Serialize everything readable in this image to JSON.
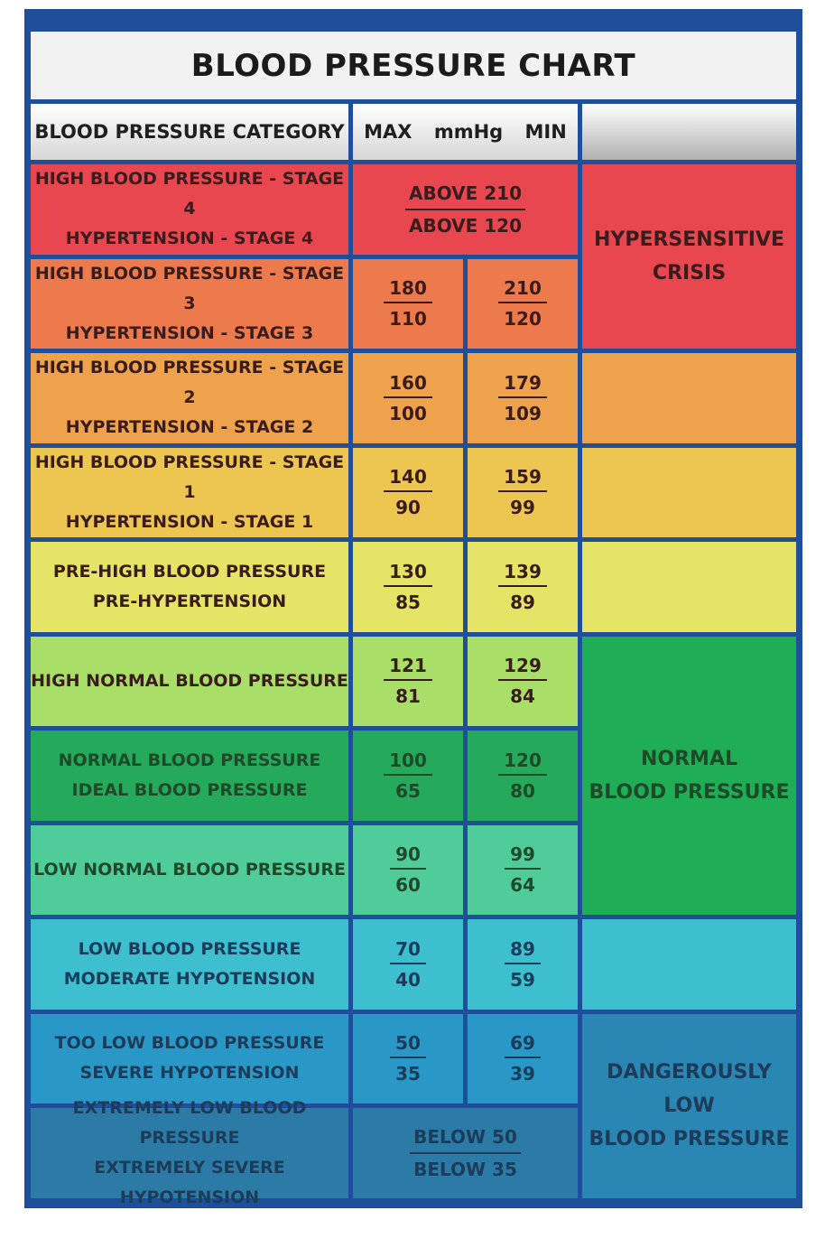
{
  "title": "BLOOD PRESSURE CHART",
  "header": {
    "category": "BLOOD PRESSURE CATEGORY",
    "max": "MAX",
    "unit": "mmHg",
    "min": "MIN"
  },
  "chart_data": {
    "type": "table",
    "columns": [
      "BLOOD PRESSURE CATEGORY",
      "MAX mmHg",
      "MIN mmHg"
    ],
    "rows": [
      {
        "line1": "HIGH BLOOD PRESSURE - STAGE 4",
        "line2": "HYPERTENSION - STAGE 4",
        "combined": [
          "ABOVE 210",
          "ABOVE 120"
        ],
        "color": "#e8474f"
      },
      {
        "line1": "HIGH BLOOD PRESSURE - STAGE 3",
        "line2": "HYPERTENSION - STAGE 3",
        "max": [
          "180",
          "110"
        ],
        "min": [
          "210",
          "120"
        ],
        "color": "#ec7a4d"
      },
      {
        "line1": "HIGH BLOOD PRESSURE - STAGE 2",
        "line2": "HYPERTENSION - STAGE 2",
        "max": [
          "160",
          "100"
        ],
        "min": [
          "179",
          "109"
        ],
        "color": "#eea24c"
      },
      {
        "line1": "HIGH BLOOD PRESSURE - STAGE 1",
        "line2": "HYPERTENSION - STAGE 1",
        "max": [
          "140",
          "90"
        ],
        "min": [
          "159",
          "99"
        ],
        "color": "#edc651"
      },
      {
        "line1": "PRE-HIGH BLOOD PRESSURE",
        "line2": "PRE-HYPERTENSION",
        "max": [
          "130",
          "85"
        ],
        "min": [
          "139",
          "89"
        ],
        "color": "#e5e466"
      },
      {
        "line1": "HIGH NORMAL BLOOD PRESSURE",
        "line2": "",
        "max": [
          "121",
          "81"
        ],
        "min": [
          "129",
          "84"
        ],
        "color": "#a9df68"
      },
      {
        "line1": "NORMAL BLOOD PRESSURE",
        "line2": "IDEAL BLOOD PRESSURE",
        "max": [
          "100",
          "65"
        ],
        "min": [
          "120",
          "80"
        ],
        "color": "#25a95a"
      },
      {
        "line1": "LOW NORMAL BLOOD PRESSURE",
        "line2": "",
        "max": [
          "90",
          "60"
        ],
        "min": [
          "99",
          "64"
        ],
        "color": "#50cc9b"
      },
      {
        "line1": "LOW BLOOD PRESSURE",
        "line2": "MODERATE HYPOTENSION",
        "max": [
          "70",
          "40"
        ],
        "min": [
          "89",
          "59"
        ],
        "color": "#3dbfcf"
      },
      {
        "line1": "TOO LOW BLOOD PRESSURE",
        "line2": "SEVERE HYPOTENSION",
        "max": [
          "50",
          "35"
        ],
        "min": [
          "69",
          "39"
        ],
        "color": "#2a98c6"
      },
      {
        "line1": "EXTREMELY LOW BLOOD PRESSURE",
        "line2": "EXTREMELY SEVERE HYPOTENSION",
        "combined": [
          "BELOW 50",
          "BELOW 35"
        ],
        "color": "#2b7ba6"
      }
    ],
    "groups": [
      {
        "line1": "HYPERSENSITIVE",
        "line2": "CRISIS",
        "row_start": 0,
        "row_end": 1,
        "color": "#e8474f"
      },
      {
        "line1": "",
        "line2": "",
        "row_start": 2,
        "row_end": 2,
        "color": "#eea24c"
      },
      {
        "line1": "",
        "line2": "",
        "row_start": 3,
        "row_end": 3,
        "color": "#edc651"
      },
      {
        "line1": "",
        "line2": "",
        "row_start": 4,
        "row_end": 4,
        "color": "#e5e466"
      },
      {
        "line1": "NORMAL",
        "line2": "BLOOD PRESSURE",
        "row_start": 5,
        "row_end": 7,
        "color": "#1fae55"
      },
      {
        "line1": "",
        "line2": "",
        "row_start": 8,
        "row_end": 8,
        "color": "#3dbfcf"
      },
      {
        "line1": "DANGEROUSLY LOW",
        "line2": "BLOOD PRESSURE",
        "row_start": 9,
        "row_end": 10,
        "color": "#2a86b3"
      }
    ]
  }
}
